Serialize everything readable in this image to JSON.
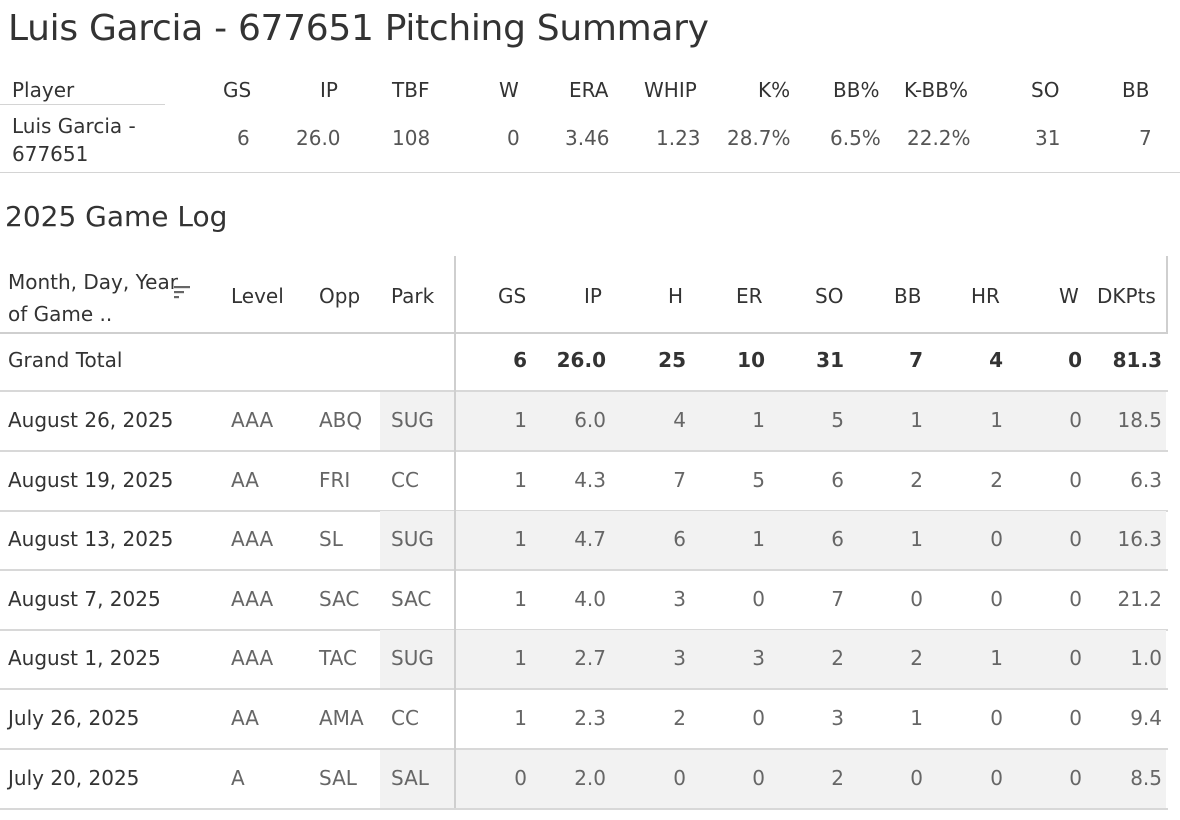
{
  "title": "Luis Garcia - 677651 Pitching Summary",
  "summary": {
    "headers": [
      "Player",
      "GS",
      "IP",
      "TBF",
      "W",
      "ERA",
      "WHIP",
      "K%",
      "BB%",
      "K-BB%",
      "SO",
      "BB"
    ],
    "row": [
      "Luis Garcia - 677651",
      "6",
      "26.0",
      "108",
      "0",
      "3.46",
      "1.23",
      "28.7%",
      "6.5%",
      "22.2%",
      "31",
      "7"
    ]
  },
  "log": {
    "title": "2025 Game Log",
    "headers": {
      "date": "Month, Day, Year of Game ..",
      "level": "Level",
      "opp": "Opp",
      "park": "Park",
      "gs": "GS",
      "ip": "IP",
      "h": "H",
      "er": "ER",
      "so": "SO",
      "bb": "BB",
      "hr": "HR",
      "w": "W",
      "dkpts": "DKPts"
    },
    "total": {
      "label": "Grand Total",
      "gs": "6",
      "ip": "26.0",
      "h": "25",
      "er": "10",
      "so": "31",
      "bb": "7",
      "hr": "4",
      "w": "0",
      "dkpts": "81.3"
    },
    "rows": [
      {
        "date": "August 26, 2025",
        "level": "AAA",
        "opp": "ABQ",
        "park": "SUG",
        "gs": "1",
        "ip": "6.0",
        "h": "4",
        "er": "1",
        "so": "5",
        "bb": "1",
        "hr": "1",
        "w": "0",
        "dkpts": "18.5"
      },
      {
        "date": "August 19, 2025",
        "level": "AA",
        "opp": "FRI",
        "park": "CC",
        "gs": "1",
        "ip": "4.3",
        "h": "7",
        "er": "5",
        "so": "6",
        "bb": "2",
        "hr": "2",
        "w": "0",
        "dkpts": "6.3"
      },
      {
        "date": "August 13, 2025",
        "level": "AAA",
        "opp": "SL",
        "park": "SUG",
        "gs": "1",
        "ip": "4.7",
        "h": "6",
        "er": "1",
        "so": "6",
        "bb": "1",
        "hr": "0",
        "w": "0",
        "dkpts": "16.3"
      },
      {
        "date": "August 7, 2025",
        "level": "AAA",
        "opp": "SAC",
        "park": "SAC",
        "gs": "1",
        "ip": "4.0",
        "h": "3",
        "er": "0",
        "so": "7",
        "bb": "0",
        "hr": "0",
        "w": "0",
        "dkpts": "21.2"
      },
      {
        "date": "August 1, 2025",
        "level": "AAA",
        "opp": "TAC",
        "park": "SUG",
        "gs": "1",
        "ip": "2.7",
        "h": "3",
        "er": "3",
        "so": "2",
        "bb": "2",
        "hr": "1",
        "w": "0",
        "dkpts": "1.0"
      },
      {
        "date": "July 26, 2025",
        "level": "AA",
        "opp": "AMA",
        "park": "CC",
        "gs": "1",
        "ip": "2.3",
        "h": "2",
        "er": "0",
        "so": "3",
        "bb": "1",
        "hr": "0",
        "w": "0",
        "dkpts": "9.4"
      },
      {
        "date": "July 20, 2025",
        "level": "A",
        "opp": "SAL",
        "park": "SAL",
        "gs": "0",
        "ip": "2.0",
        "h": "0",
        "er": "0",
        "so": "2",
        "bb": "0",
        "hr": "0",
        "w": "0",
        "dkpts": "8.5"
      }
    ]
  }
}
